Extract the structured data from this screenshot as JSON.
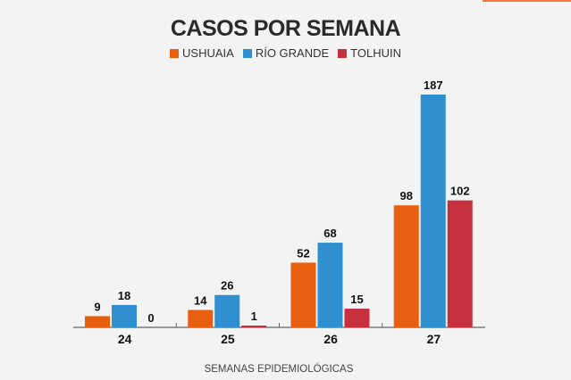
{
  "chart_data": {
    "type": "bar",
    "title": "CASOS POR SEMANA",
    "xlabel": "SEMANAS EPIDEMIOLÓGICAS",
    "ylabel": "",
    "categories": [
      "24",
      "25",
      "26",
      "27"
    ],
    "series": [
      {
        "name": "USHUAIA",
        "color": "#e8600f",
        "values": [
          9,
          14,
          52,
          98
        ]
      },
      {
        "name": "RÍO GRANDE",
        "color": "#2f8fcf",
        "values": [
          18,
          26,
          68,
          187
        ]
      },
      {
        "name": "TOLHUIN",
        "color": "#c6303f",
        "values": [
          0,
          1,
          15,
          102
        ]
      }
    ],
    "ylim": [
      0,
      187
    ],
    "grid": false,
    "legend": "top-center"
  }
}
